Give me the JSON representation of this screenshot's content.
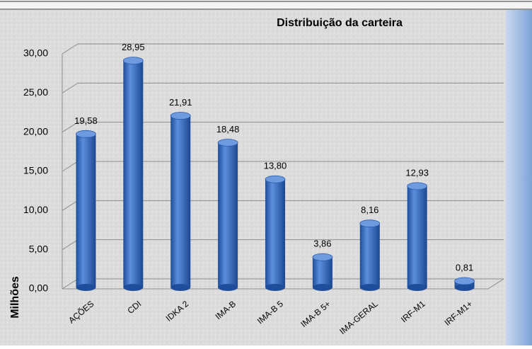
{
  "chart_data": {
    "type": "bar",
    "title": "Distribuição da carteira",
    "y_label": "Milhões",
    "categories": [
      "AÇÕES",
      "CDI",
      "IDKA 2",
      "IMA-B",
      "IMA-B 5",
      "IMA-B 5+",
      "IMA-GERAL",
      "IRF-M1",
      "IRF-M1+"
    ],
    "values": [
      19.58,
      28.95,
      21.91,
      18.48,
      13.8,
      3.86,
      8.16,
      12.93,
      0.81
    ],
    "value_labels": [
      "19,58",
      "28,95",
      "21,91",
      "18,48",
      "13,80",
      "3,86",
      "8,16",
      "12,93",
      "0,81"
    ],
    "color": "#3a6fc4",
    "ylim": [
      0,
      30
    ],
    "yticks": [
      {
        "value": 0,
        "label": "0,00"
      },
      {
        "value": 5,
        "label": "5,00"
      },
      {
        "value": 10,
        "label": "10,00"
      },
      {
        "value": 15,
        "label": "15,00"
      },
      {
        "value": 20,
        "label": "20,00"
      },
      {
        "value": 25,
        "label": "25,00"
      },
      {
        "value": 30,
        "label": "30,00"
      }
    ],
    "grid": true
  }
}
